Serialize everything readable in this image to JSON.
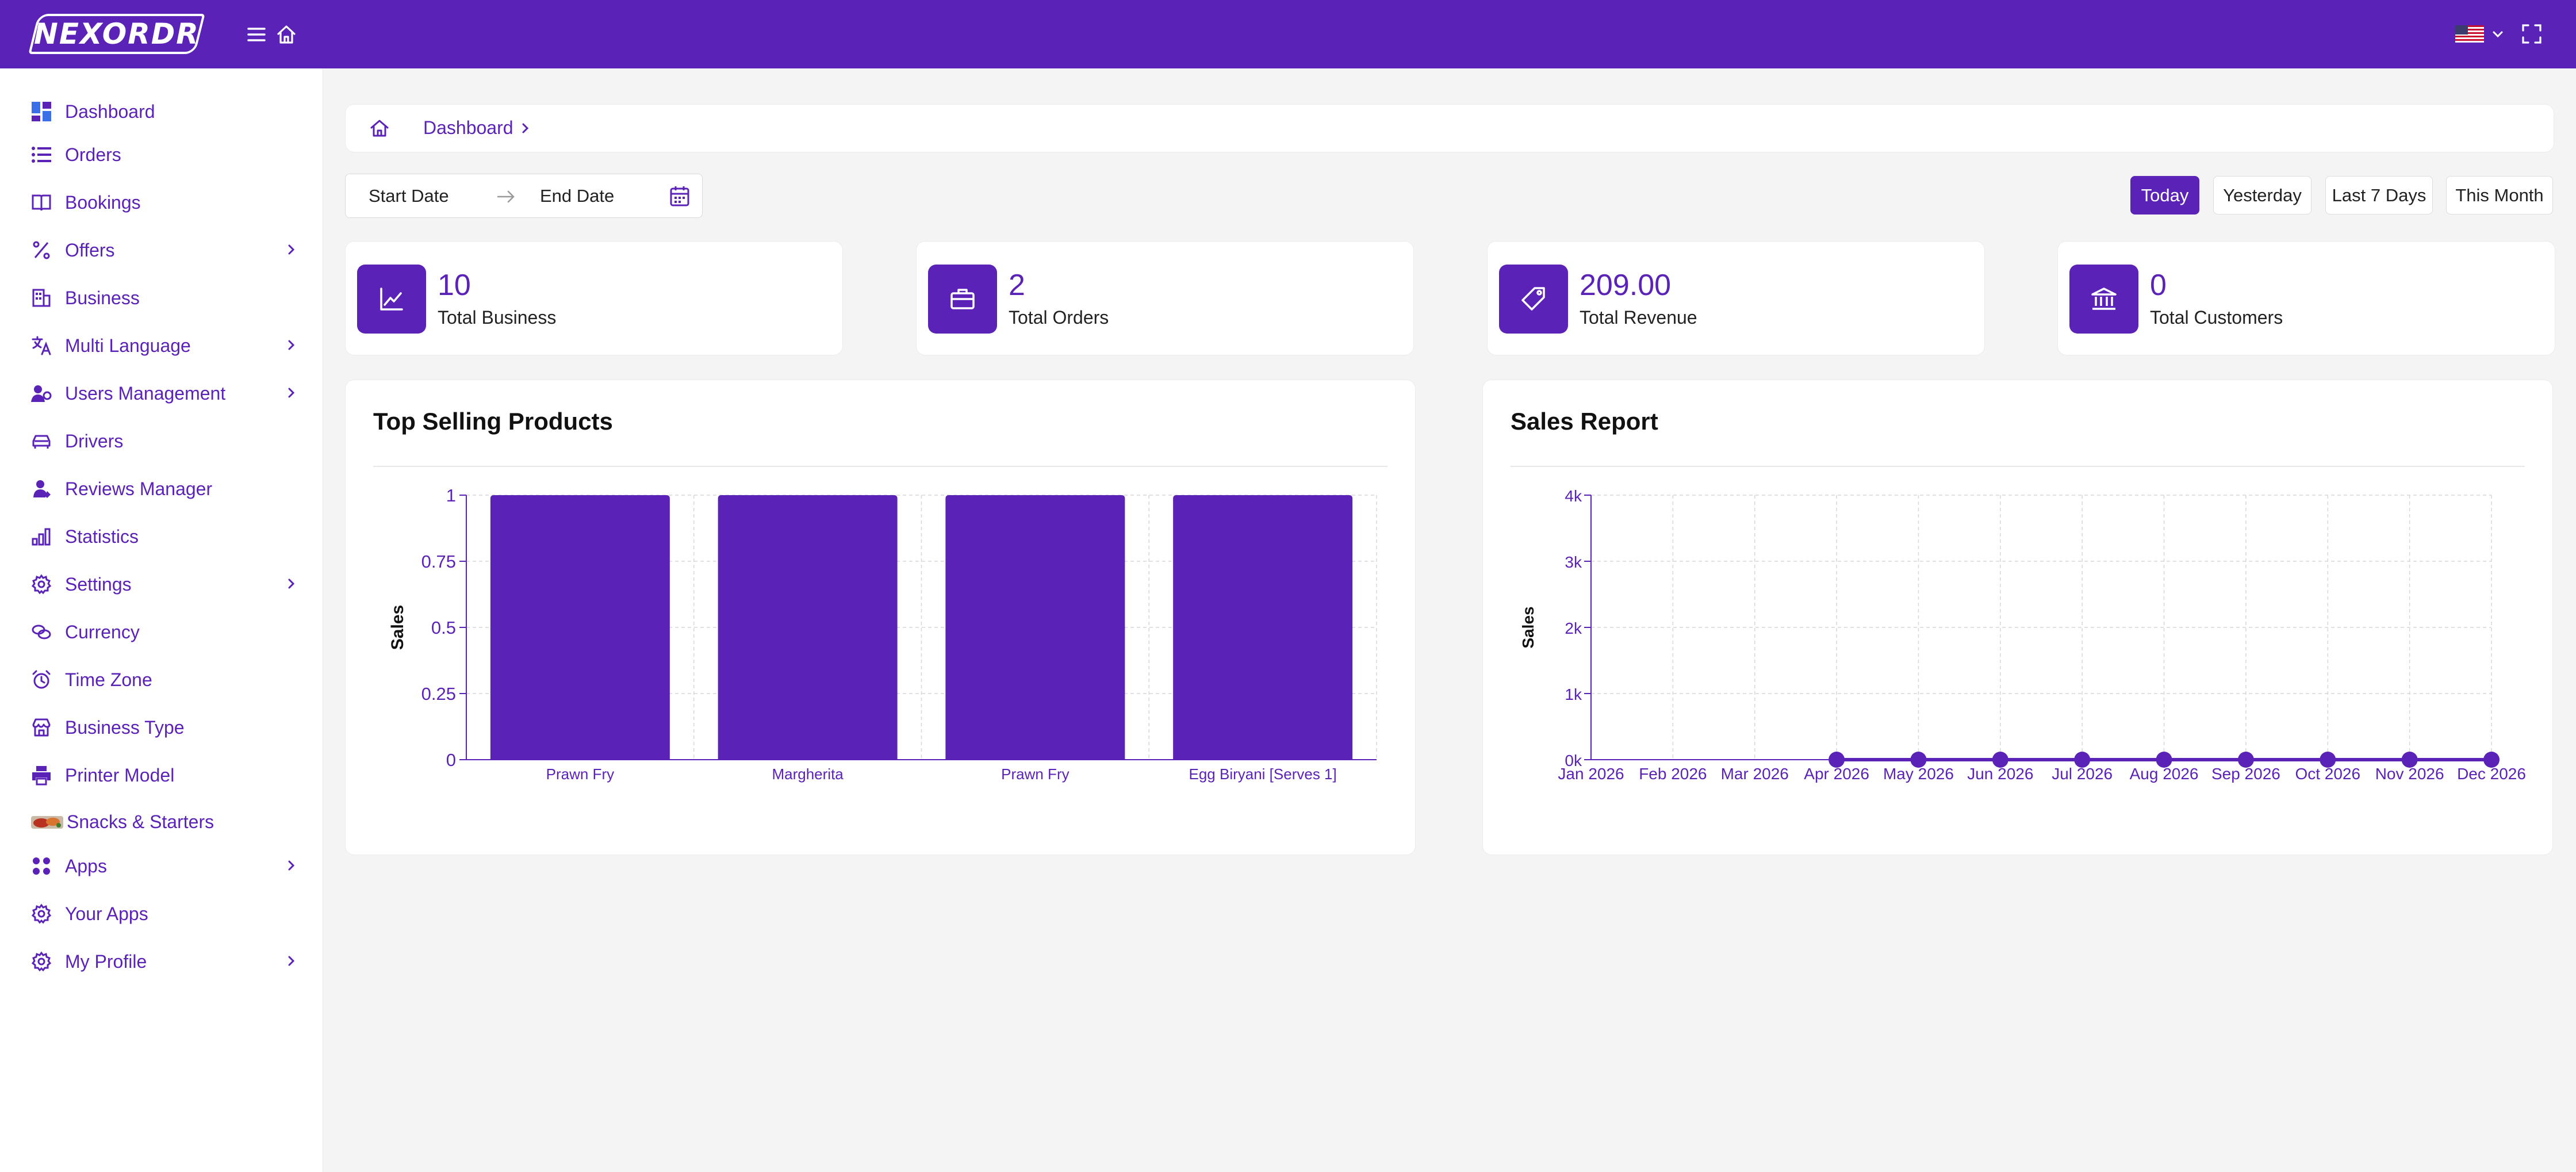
{
  "app": {
    "logo_text": "NEXORDR",
    "icons": {
      "menu": "hamburger-icon",
      "home": "home-icon",
      "flag": "us-flag-icon",
      "fullscreen": "fullscreen-icon"
    }
  },
  "sidebar": {
    "items": [
      {
        "label": "Dashboard",
        "icon": "dashboard-grid-icon",
        "chevron": false
      },
      {
        "label": "Orders",
        "icon": "list-icon",
        "chevron": false
      },
      {
        "label": "Bookings",
        "icon": "book-icon",
        "chevron": false
      },
      {
        "label": "Offers",
        "icon": "percent-icon",
        "chevron": true
      },
      {
        "label": "Business",
        "icon": "building-icon",
        "chevron": false
      },
      {
        "label": "Multi Language",
        "icon": "translate-icon",
        "chevron": true
      },
      {
        "label": "Users Management",
        "icon": "users-icon",
        "chevron": true
      },
      {
        "label": "Drivers",
        "icon": "car-icon",
        "chevron": false
      },
      {
        "label": "Reviews Manager",
        "icon": "reviewer-icon",
        "chevron": false
      },
      {
        "label": "Statistics",
        "icon": "bar-chart-icon",
        "chevron": false
      },
      {
        "label": "Settings",
        "icon": "gear-icon",
        "chevron": true
      },
      {
        "label": "Currency",
        "icon": "coins-icon",
        "chevron": false
      },
      {
        "label": "Time Zone",
        "icon": "alarm-icon",
        "chevron": false
      },
      {
        "label": "Business Type",
        "icon": "store-icon",
        "chevron": false
      },
      {
        "label": "Printer Model",
        "icon": "printer-icon",
        "chevron": false
      },
      {
        "label": "Snacks & Starters",
        "icon": "food-thumbnail-icon",
        "chevron": false
      },
      {
        "label": "Apps",
        "icon": "apps-icon",
        "chevron": true
      },
      {
        "label": "Your Apps",
        "icon": "gear-icon",
        "chevron": false
      },
      {
        "label": "My Profile",
        "icon": "gear-icon",
        "chevron": true
      }
    ]
  },
  "breadcrumb": {
    "label": "Dashboard"
  },
  "filters": {
    "start_placeholder": "Start Date",
    "end_placeholder": "End Date",
    "ranges": [
      {
        "label": "Today",
        "active": true
      },
      {
        "label": "Yesterday",
        "active": false
      },
      {
        "label": "Last 7 Days",
        "active": false
      },
      {
        "label": "This Month",
        "active": false
      }
    ]
  },
  "stats": [
    {
      "value": "10",
      "label": "Total Business",
      "icon": "trend-chart-icon"
    },
    {
      "value": "2",
      "label": "Total Orders",
      "icon": "briefcase-icon"
    },
    {
      "value": "209.00",
      "label": "Total Revenue",
      "icon": "tag-icon"
    },
    {
      "value": "0",
      "label": "Total Customers",
      "icon": "bank-icon"
    }
  ],
  "panels": {
    "top_selling_title": "Top Selling Products",
    "sales_report_title": "Sales Report"
  },
  "colors": {
    "accent": "#5b22b8",
    "background": "#f4f4f4",
    "card": "#ffffff"
  },
  "chart_data": [
    {
      "type": "bar",
      "title": "Top Selling Products",
      "categories": [
        "Prawn Fry",
        "Margherita",
        "Prawn Fry",
        "Egg Biryani [Serves 1]"
      ],
      "values": [
        1,
        1,
        1,
        1
      ],
      "ylabel": "Sales",
      "xlabel": "",
      "ylim": [
        0,
        1
      ],
      "yticks": [
        "0",
        "0.25",
        "0.5",
        "0.75",
        "1"
      ],
      "grid": true
    },
    {
      "type": "line",
      "title": "Sales Report",
      "x": [
        "Jan 2026",
        "Feb 2026",
        "Mar 2026",
        "Apr 2026",
        "May 2026",
        "Jun 2026",
        "Jul 2026",
        "Aug 2026",
        "Sep 2026",
        "Oct 2026",
        "Nov 2026",
        "Dec 2026"
      ],
      "values": [
        null,
        null,
        null,
        0,
        0,
        0,
        0,
        0,
        0,
        0,
        0,
        0
      ],
      "ylabel": "Sales",
      "xlabel": "",
      "ylim": [
        0,
        4000
      ],
      "yticks": [
        "0k",
        "1k",
        "2k",
        "3k",
        "4k"
      ],
      "grid": true
    }
  ]
}
